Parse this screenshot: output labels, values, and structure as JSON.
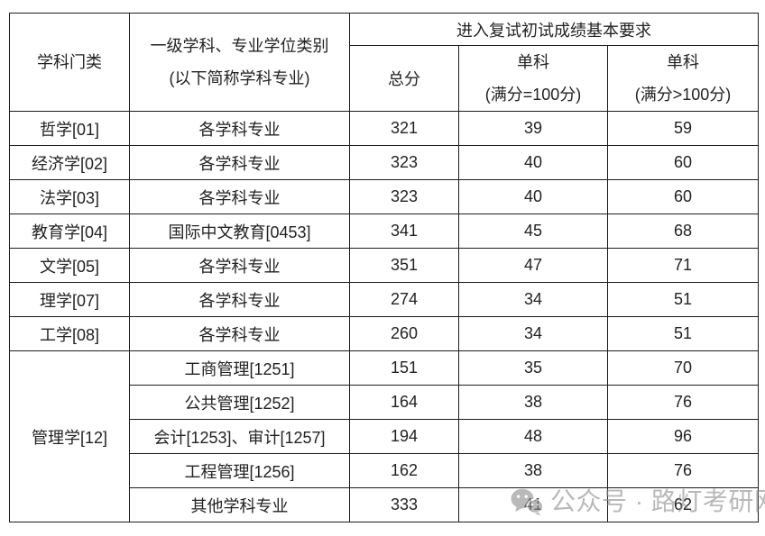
{
  "table": {
    "header": {
      "category": "学科门类",
      "major_line1": "一级学科、专业学位类别",
      "major_line2": "(以下简称学科专业)",
      "requirement_title": "进入复试初试成绩基本要求",
      "total": "总分",
      "single_line1": "单科",
      "single_line2": "(满分=100分)",
      "single_gt_line1": "单科",
      "single_gt_line2": "(满分>100分)"
    },
    "rows": [
      {
        "category": "哲学[01]",
        "rowspan": 1,
        "major": "各学科专业",
        "total": "321",
        "single": "39",
        "single_gt": "59"
      },
      {
        "category": "经济学[02]",
        "rowspan": 1,
        "major": "各学科专业",
        "total": "323",
        "single": "40",
        "single_gt": "60"
      },
      {
        "category": "法学[03]",
        "rowspan": 1,
        "major": "各学科专业",
        "total": "323",
        "single": "40",
        "single_gt": "60"
      },
      {
        "category": "教育学[04]",
        "rowspan": 1,
        "major": "国际中文教育[0453]",
        "total": "341",
        "single": "45",
        "single_gt": "68"
      },
      {
        "category": "文学[05]",
        "rowspan": 1,
        "major": "各学科专业",
        "total": "351",
        "single": "47",
        "single_gt": "71"
      },
      {
        "category": "理学[07]",
        "rowspan": 1,
        "major": "各学科专业",
        "total": "274",
        "single": "34",
        "single_gt": "51"
      },
      {
        "category": "工学[08]",
        "rowspan": 1,
        "major": "各学科专业",
        "total": "260",
        "single": "34",
        "single_gt": "51"
      },
      {
        "category": "管理学[12]",
        "rowspan": 5,
        "major": "工商管理[1251]",
        "total": "151",
        "single": "35",
        "single_gt": "70"
      },
      {
        "category": null,
        "rowspan": 0,
        "major": "公共管理[1252]",
        "total": "164",
        "single": "38",
        "single_gt": "76"
      },
      {
        "category": null,
        "rowspan": 0,
        "major": "会计[1253]、审计[1257]",
        "total": "194",
        "single": "48",
        "single_gt": "96"
      },
      {
        "category": null,
        "rowspan": 0,
        "major": "工程管理[1256]",
        "total": "162",
        "single": "38",
        "single_gt": "76"
      },
      {
        "category": null,
        "rowspan": 0,
        "major": "其他学科专业",
        "total": "333",
        "single": "41",
        "single_gt": "62"
      }
    ]
  },
  "watermark": {
    "icon": "wechat-icon",
    "text": "公众号 · 路灯考研网",
    "color": "#8f8f8f"
  },
  "colors": {
    "border": "#1c1c1c",
    "text": "#222222",
    "background": "#ffffff"
  }
}
